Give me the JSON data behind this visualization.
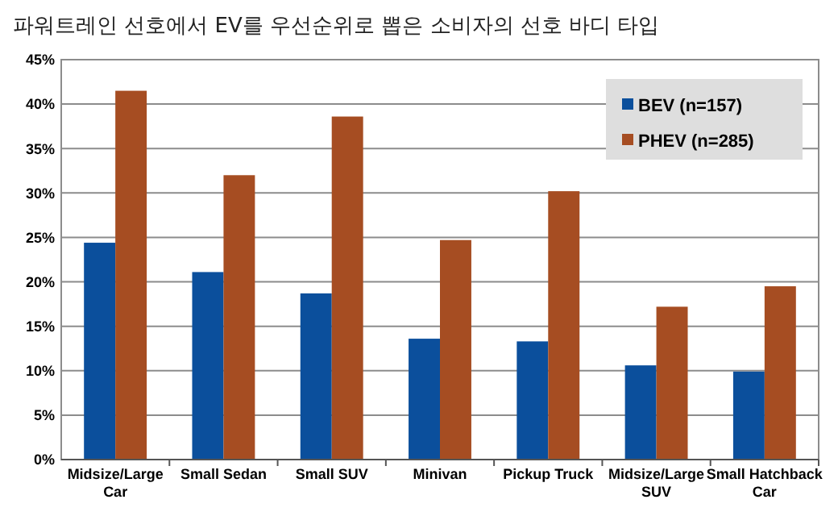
{
  "chart_data": {
    "type": "bar",
    "title": "파워트레인 선호에서 EV를 우선순위로 뽑은 소비자의 선호 바디 타입",
    "categories": [
      "Midsize/Large Car",
      "Small Sedan",
      "Small SUV",
      "Minivan",
      "Pickup Truck",
      "Midsize/Large SUV",
      "Small Hatchback Car"
    ],
    "series": [
      {
        "name": "BEV (n=157)",
        "color": "#0b4f9c",
        "values": [
          24.4,
          21.1,
          18.7,
          13.6,
          13.3,
          10.6,
          9.9
        ]
      },
      {
        "name": "PHEV (n=285)",
        "color": "#a64d22",
        "values": [
          41.5,
          32,
          38.6,
          24.7,
          30.2,
          17.2,
          19.5
        ]
      }
    ],
    "ylim": [
      0,
      45
    ],
    "yticks": [
      {
        "value": 0,
        "label": "0%"
      },
      {
        "value": 5,
        "label": "5%"
      },
      {
        "value": 10,
        "label": "10%"
      },
      {
        "value": 15,
        "label": "15%"
      },
      {
        "value": 20,
        "label": "20%"
      },
      {
        "value": 25,
        "label": "25%"
      },
      {
        "value": 30,
        "label": "30%"
      },
      {
        "value": 35,
        "label": "35%"
      },
      {
        "value": 40,
        "label": "40%"
      },
      {
        "value": 45,
        "label": "45%"
      }
    ],
    "grid": "y",
    "legend": "top right"
  }
}
